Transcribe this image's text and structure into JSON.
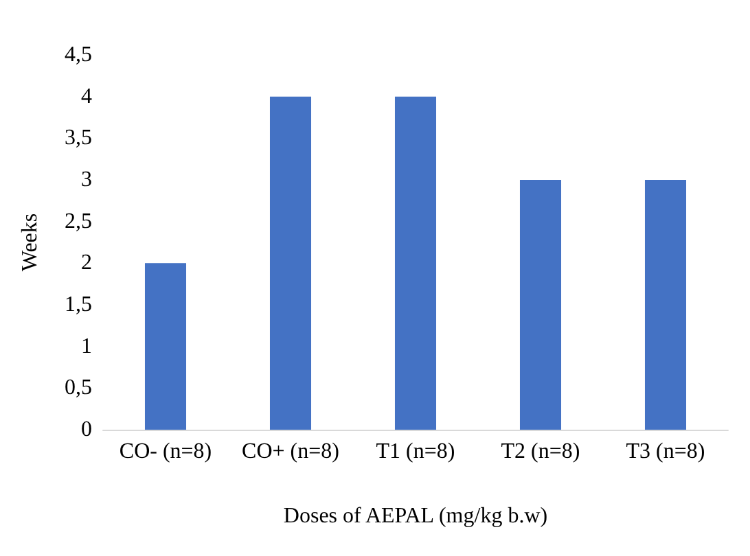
{
  "chart_data": {
    "type": "bar",
    "xlabel": "Doses of AEPAL (mg/kg b.w)",
    "ylabel": "Weeks",
    "categories": [
      "CO- (n=8)",
      "CO+ (n=8)",
      "T1 (n=8)",
      "T2 (n=8)",
      "T3 (n=8)"
    ],
    "values": [
      2,
      4,
      4,
      3,
      3
    ],
    "color": "#4472c4",
    "ylim": [
      0,
      4.5
    ],
    "yticks": [
      0,
      {
        "value": 0.5,
        "label": "0,5"
      },
      1,
      {
        "value": 1.5,
        "label": "1,5"
      },
      2,
      {
        "value": 2.5,
        "label": "2,5"
      },
      3,
      {
        "value": 3.5,
        "label": "3,5"
      },
      4,
      {
        "value": 4.5,
        "label": "4,5"
      }
    ],
    "grid": false
  }
}
